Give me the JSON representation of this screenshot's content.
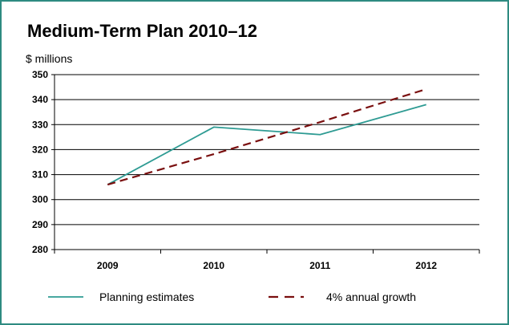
{
  "chart_data": {
    "type": "line",
    "title": "Medium-Term Plan 2010–12",
    "ylabel": "$ millions",
    "xlabel": "",
    "categories": [
      "2009",
      "2010",
      "2011",
      "2012"
    ],
    "ylim": [
      280,
      350
    ],
    "yticks": [
      280,
      290,
      300,
      310,
      320,
      330,
      340,
      350
    ],
    "grid": true,
    "legend_position": "bottom",
    "series": [
      {
        "name": "Planning estimates",
        "values": [
          306,
          329,
          326,
          338
        ],
        "color": "#2e9b93",
        "style": "solid"
      },
      {
        "name": "4% annual growth",
        "values": [
          306,
          318.2,
          331.0,
          344.2
        ],
        "color": "#7a0f0f",
        "style": "dashed"
      }
    ],
    "frame_color": "#2e8b81"
  }
}
